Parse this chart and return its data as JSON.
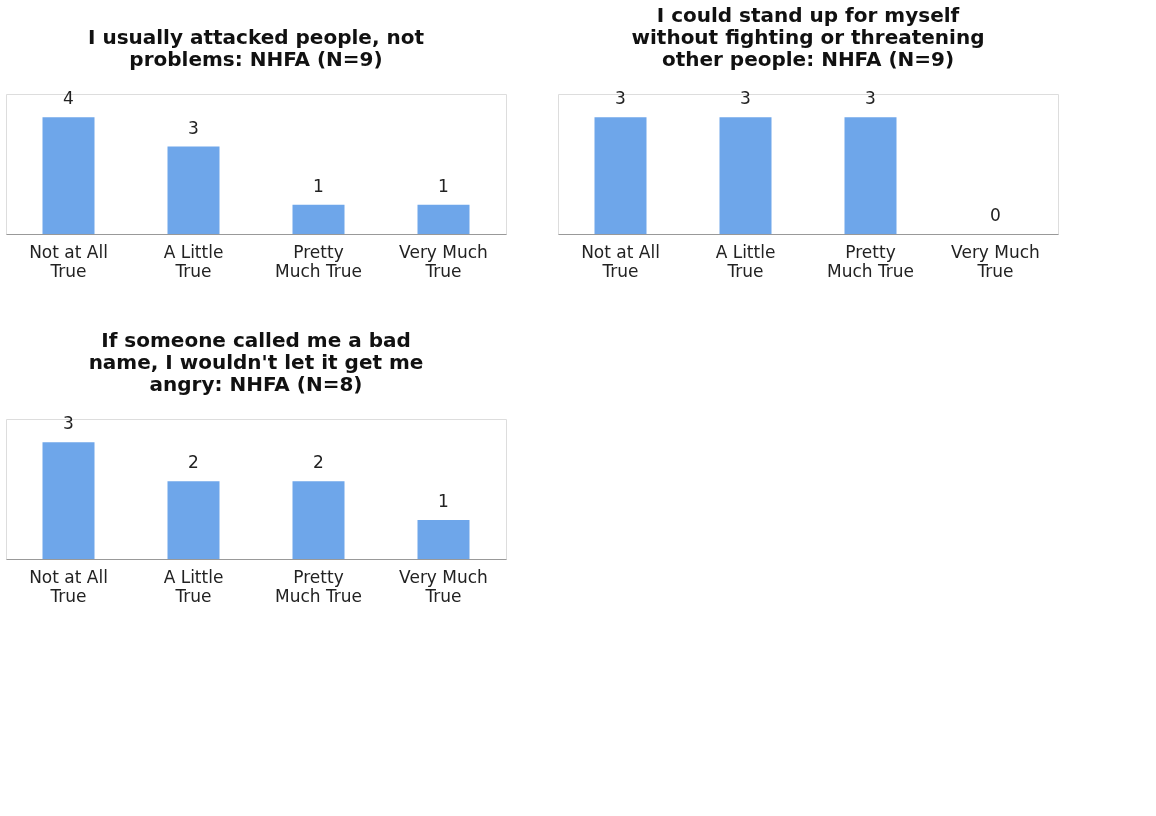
{
  "chart_data": [
    {
      "type": "bar",
      "title": "I usually attacked people, not\nproblems: NHFA (N=9)",
      "categories": [
        "Not at All True",
        "A Little True",
        "Pretty Much True",
        "Very Much True"
      ],
      "values": [
        4,
        3,
        1,
        1
      ],
      "color": "#6ea6ea",
      "data_labels": true
    },
    {
      "type": "bar",
      "title": "I could stand up for myself\nwithout fighting or threatening\nother people: NHFA (N=9)",
      "categories": [
        "Not at All True",
        "A Little True",
        "Pretty Much True",
        "Very Much True"
      ],
      "values": [
        3,
        3,
        3,
        0
      ],
      "color": "#6ea6ea",
      "data_labels": true
    },
    {
      "type": "bar",
      "title": "If someone called me a bad\nname, I wouldn't let it get me\nangry: NHFA (N=8)",
      "categories": [
        "Not at All True",
        "A Little True",
        "Pretty Much True",
        "Very Much True"
      ],
      "values": [
        3,
        2,
        2,
        1
      ],
      "color": "#6ea6ea",
      "data_labels": true
    }
  ]
}
